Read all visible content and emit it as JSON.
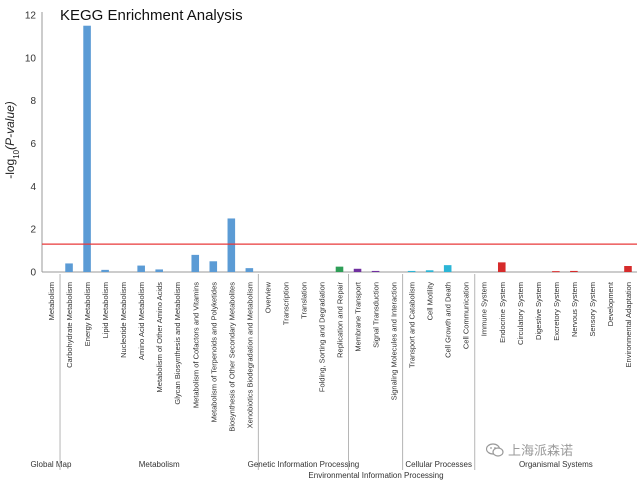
{
  "chart_data": {
    "type": "bar",
    "title": "KEGG Enrichment Analysis",
    "ylabel_main": "-log",
    "ylabel_sub": "10",
    "ylabel_tail": "(P-value)",
    "ylim": [
      0,
      12
    ],
    "yticks": [
      0,
      2,
      4,
      6,
      8,
      10,
      12
    ],
    "threshold": 1.3,
    "threshold_color": "#e8383a",
    "categories": [
      "Metabolism",
      "Carbohydrate Metabolism",
      "Energy Metabolism",
      "Lipid Metabolism",
      "Nucleotide Metabolism",
      "Amino Acid Metabolism",
      "Metabolism of Other Amino Acids",
      "Glycan Biosynthesis and Metabolism",
      "Metabolism of Cofactors and Vitamins",
      "Metabolism of Terpenoids and Polyketides",
      "Biosynthesis of Other Secondary Metabolites",
      "Xenobiotics Biodegradation and Metabolism",
      "Overview",
      "Transcription",
      "Translation",
      "Folding, Sorting and Degradation",
      "Replication and Repair",
      "Membrane Transport",
      "Signal Transduction",
      "Signaling Molecules and Interaction",
      "Transport and Catabolism",
      "Cell Motility",
      "Cell Growth and Death",
      "Cell Communication",
      "Immune System",
      "Endocrine System",
      "Circulatory System",
      "Digestive System",
      "Excretory System",
      "Nervous System",
      "Sensory System",
      "Development",
      "Environmental Adaptation"
    ],
    "values": [
      0,
      0.4,
      11.5,
      0.1,
      0,
      0.3,
      0.12,
      0,
      0.8,
      0.5,
      2.5,
      0.18,
      0,
      0,
      0,
      0,
      0.25,
      0.15,
      0.05,
      0,
      0.05,
      0.08,
      0.32,
      0,
      0,
      0.45,
      0,
      0,
      0.04,
      0.05,
      0,
      0,
      0.28
    ],
    "colors": [
      "#5b9bd5",
      "#5b9bd5",
      "#5b9bd5",
      "#5b9bd5",
      "#5b9bd5",
      "#5b9bd5",
      "#5b9bd5",
      "#5b9bd5",
      "#5b9bd5",
      "#5b9bd5",
      "#5b9bd5",
      "#5b9bd5",
      "#5b9bd5",
      "#5b9bd5",
      "#5b9bd5",
      "#5b9bd5",
      "#2e9e57",
      "#7030a0",
      "#7030a0",
      "#7030a0",
      "#2bb5d6",
      "#2bb5d6",
      "#2bb5d6",
      "#2bb5d6",
      "#d62b2b",
      "#d62b2b",
      "#d62b2b",
      "#d62b2b",
      "#d62b2b",
      "#d62b2b",
      "#d62b2b",
      "#d62b2b",
      "#d62b2b"
    ],
    "groups": [
      {
        "label": "Global Map",
        "from": 0,
        "to": 0
      },
      {
        "label": "Metabolism",
        "from": 1,
        "to": 11
      },
      {
        "label": "Genetic Information Processing",
        "from": 12,
        "to": 16
      },
      {
        "label": "Environmental Information Processing",
        "from": 17,
        "to": 19
      },
      {
        "label": "Cellular Processes",
        "from": 20,
        "to": 23
      },
      {
        "label": "Organismal Systems",
        "from": 24,
        "to": 32
      }
    ]
  },
  "watermark": {
    "text": "上海派森诺",
    "color": "#9a9a9a"
  }
}
